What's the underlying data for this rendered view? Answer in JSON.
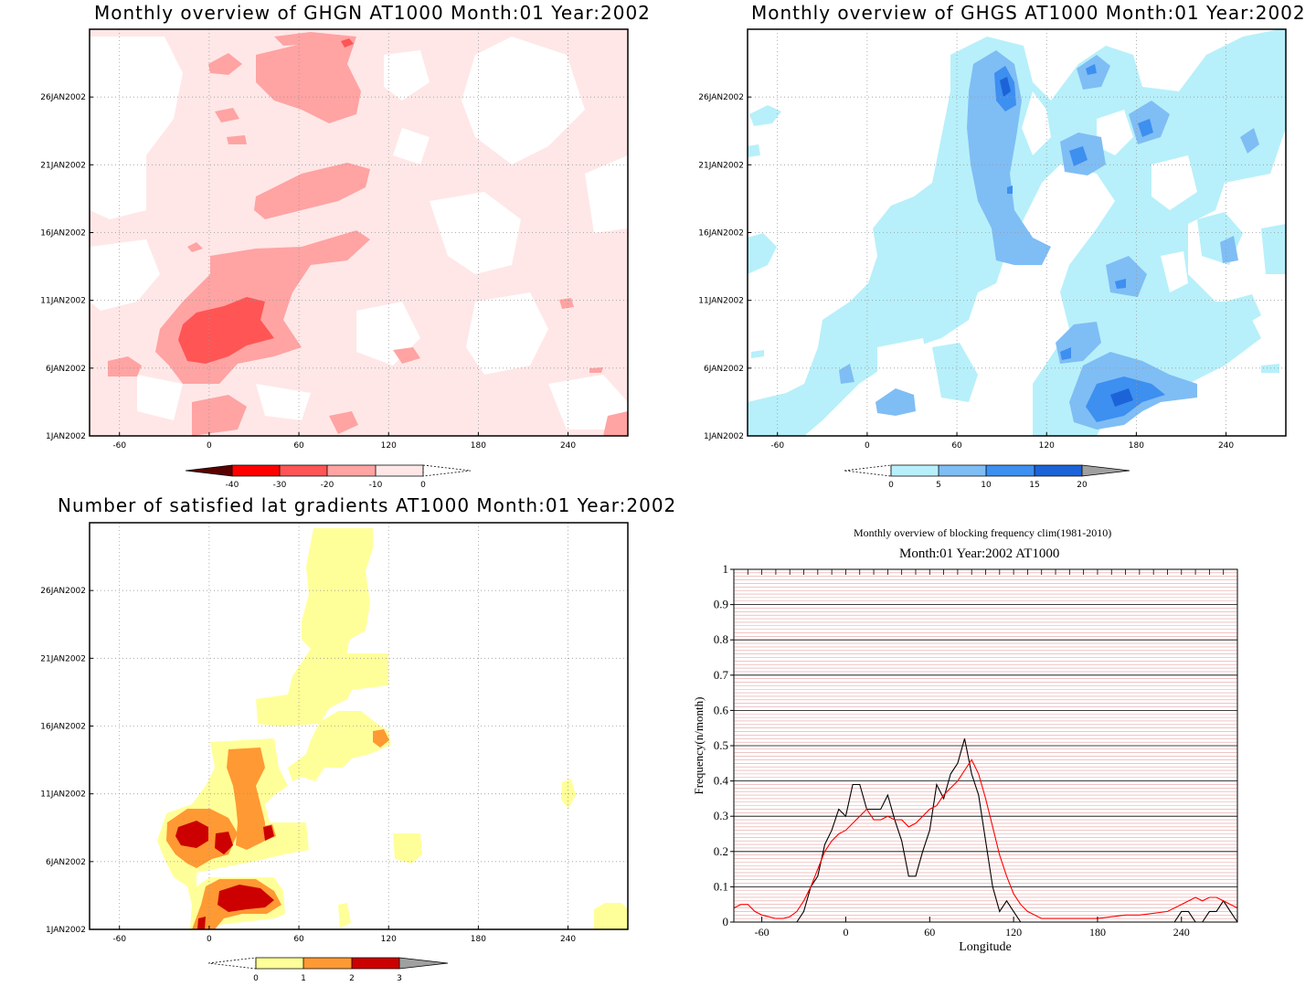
{
  "panels": {
    "ghgn": {
      "title": "Monthly overview of GHGN AT1000 Month:01 Year:2002",
      "legend": {
        "labels": [
          "-40",
          "-30",
          "-20",
          "-10",
          "0"
        ],
        "colors": [
          "#5a0000",
          "#ff0000",
          "#ff5555",
          "#ffa3a3",
          "#ffe7e7"
        ]
      }
    },
    "ghgs": {
      "title": "Monthly overview of GHGS AT1000 Month:01 Year:2002",
      "legend": {
        "labels": [
          "0",
          "5",
          "10",
          "15",
          "20"
        ],
        "colors": [
          "#b7f0fa",
          "#7fbdf5",
          "#3d8ff0",
          "#1c63d8",
          "#a0a0a0"
        ]
      }
    },
    "grad": {
      "title": "Number of satisfied lat gradients AT1000 Month:01 Year:2002",
      "legend": {
        "labels": [
          "0",
          "1",
          "2",
          "3"
        ],
        "colors": [
          "#ffff99",
          "#ff9933",
          "#cc0000",
          "#a0a0a0"
        ]
      }
    },
    "freq": {
      "title": "Monthly overview of blocking frequency clim(1981-2010)",
      "subtitle": "Month:01 Year:2002  AT1000"
    }
  },
  "time_axis": [
    "1JAN2002",
    "6JAN2002",
    "11JAN2002",
    "16JAN2002",
    "21JAN2002",
    "26JAN2002"
  ],
  "lon_axis": [
    "-60",
    "0",
    "60",
    "120",
    "180",
    "240"
  ],
  "chart_data": [
    {
      "type": "heatmap",
      "title": "Monthly overview of GHGN AT1000 Month:01 Year:2002",
      "x_ticks": [
        -60,
        0,
        60,
        120,
        180,
        240
      ],
      "xlim": [
        -80,
        280
      ],
      "y_ticks": [
        "1JAN2002",
        "6JAN2002",
        "11JAN2002",
        "16JAN2002",
        "21JAN2002",
        "26JAN2002"
      ],
      "color_levels": [
        -40,
        -30,
        -20,
        -10,
        0
      ]
    },
    {
      "type": "heatmap",
      "title": "Monthly overview of GHGS AT1000 Month:01 Year:2002",
      "x_ticks": [
        -60,
        0,
        60,
        120,
        180,
        240
      ],
      "xlim": [
        -80,
        280
      ],
      "y_ticks": [
        "1JAN2002",
        "6JAN2002",
        "11JAN2002",
        "16JAN2002",
        "21JAN2002",
        "26JAN2002"
      ],
      "color_levels": [
        0,
        5,
        10,
        15,
        20
      ]
    },
    {
      "type": "heatmap",
      "title": "Number of satisfied lat gradients AT1000 Month:01 Year:2002",
      "x_ticks": [
        -60,
        0,
        60,
        120,
        180,
        240
      ],
      "xlim": [
        -80,
        280
      ],
      "y_ticks": [
        "1JAN2002",
        "6JAN2002",
        "11JAN2002",
        "16JAN2002",
        "21JAN2002",
        "26JAN2002"
      ],
      "color_levels": [
        0,
        1,
        2,
        3
      ]
    },
    {
      "type": "line",
      "title": "Monthly overview of blocking frequency clim(1981-2010)",
      "subtitle": "Month:01 Year:2002  AT1000",
      "xlabel": "Longitude",
      "ylabel": "Frequency(n/month)",
      "xlim": [
        -80,
        280
      ],
      "ylim": [
        0,
        1
      ],
      "x_ticks": [
        -60,
        0,
        60,
        120,
        180,
        240
      ],
      "y_ticks": [
        0,
        0.1,
        0.2,
        0.3,
        0.4,
        0.5,
        0.6,
        0.7,
        0.8,
        0.9,
        1
      ],
      "series": [
        {
          "color": "#000000",
          "x": [
            -80,
            -40,
            -35,
            -30,
            -25,
            -20,
            -15,
            -10,
            -5,
            0,
            5,
            10,
            15,
            20,
            25,
            30,
            35,
            40,
            45,
            50,
            55,
            60,
            65,
            70,
            75,
            80,
            85,
            90,
            95,
            100,
            105,
            110,
            115,
            120,
            125,
            130,
            135,
            140,
            150,
            160,
            170,
            180,
            190,
            200,
            210,
            220,
            230,
            235,
            240,
            245,
            250,
            255,
            260,
            265,
            270,
            275,
            280
          ],
          "y": [
            0,
            0,
            0,
            0.03,
            0.1,
            0.13,
            0.22,
            0.26,
            0.32,
            0.3,
            0.39,
            0.39,
            0.32,
            0.32,
            0.32,
            0.36,
            0.29,
            0.23,
            0.13,
            0.13,
            0.2,
            0.26,
            0.39,
            0.35,
            0.42,
            0.45,
            0.52,
            0.42,
            0.36,
            0.23,
            0.1,
            0.03,
            0.06,
            0.03,
            0,
            0,
            0,
            0,
            0,
            0,
            0,
            0,
            0,
            0,
            0,
            0,
            0,
            0,
            0.03,
            0.03,
            0,
            0,
            0.03,
            0.03,
            0.06,
            0.03,
            0
          ]
        },
        {
          "color": "#ff0000",
          "x": [
            -80,
            -75,
            -70,
            -65,
            -60,
            -55,
            -50,
            -45,
            -40,
            -35,
            -30,
            -25,
            -20,
            -15,
            -10,
            -5,
            0,
            5,
            10,
            15,
            20,
            25,
            30,
            35,
            40,
            45,
            50,
            55,
            60,
            65,
            70,
            75,
            80,
            85,
            90,
            95,
            100,
            105,
            110,
            115,
            120,
            125,
            130,
            135,
            140,
            150,
            160,
            170,
            180,
            190,
            200,
            210,
            220,
            230,
            240,
            250,
            255,
            260,
            265,
            270,
            275,
            280
          ],
          "y": [
            0.04,
            0.05,
            0.05,
            0.03,
            0.02,
            0.015,
            0.01,
            0.01,
            0.015,
            0.03,
            0.06,
            0.1,
            0.15,
            0.2,
            0.23,
            0.25,
            0.26,
            0.28,
            0.3,
            0.32,
            0.29,
            0.29,
            0.3,
            0.29,
            0.29,
            0.27,
            0.28,
            0.3,
            0.32,
            0.33,
            0.36,
            0.38,
            0.4,
            0.43,
            0.46,
            0.42,
            0.35,
            0.27,
            0.19,
            0.13,
            0.08,
            0.05,
            0.03,
            0.02,
            0.01,
            0.01,
            0.01,
            0.01,
            0.01,
            0.015,
            0.02,
            0.02,
            0.025,
            0.03,
            0.05,
            0.07,
            0.06,
            0.07,
            0.07,
            0.06,
            0.05,
            0.04
          ]
        }
      ]
    }
  ]
}
